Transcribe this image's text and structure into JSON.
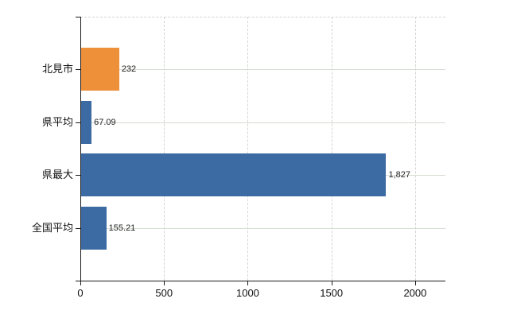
{
  "chart_data": {
    "type": "bar",
    "orientation": "horizontal",
    "title": "",
    "xlabel": "",
    "ylabel": "",
    "categories": [
      "北見市",
      "県平均",
      "県最大",
      "全国平均"
    ],
    "values": [
      232,
      67.09,
      1827,
      155.21
    ],
    "value_labels": [
      "232",
      "67.09",
      "1,827",
      "155.21"
    ],
    "bar_colors": [
      "#ee9039",
      "#3c6ba3",
      "#3c6ba3",
      "#3c6ba3"
    ],
    "x_ticks": [
      0,
      500,
      1000,
      1500,
      2000
    ],
    "x_tick_labels": [
      "0",
      "500",
      "1000",
      "1500",
      "2000"
    ],
    "xlim": [
      0,
      2181
    ],
    "legend": "none",
    "grid": {
      "vertical": "dashed",
      "horizontal": "solid",
      "vertical_color": "#d4d4d4",
      "horizontal_color": "#d5dcd2",
      "top_border": "dashed"
    },
    "axis_color": "#1a1a1a",
    "background_color": "#ffffff"
  }
}
